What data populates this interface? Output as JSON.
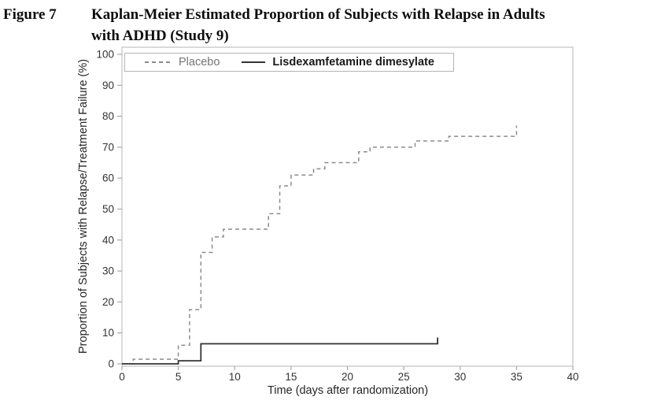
{
  "figure": {
    "label": "Figure 7",
    "title_line1": "Kaplan-Meier Estimated Proportion of Subjects with Relapse in Adults",
    "title_line2": "with ADHD (Study 9)"
  },
  "chart_data": {
    "type": "line",
    "subtype": "kaplan-meier-step",
    "title": "Kaplan-Meier Estimated Proportion of Subjects with Relapse in Adults with ADHD (Study 9)",
    "xlabel": "Time (days after randomization)",
    "ylabel": "Proportion of Subjects with Relapse/Treatment Failure (%)",
    "xlim": [
      0,
      40
    ],
    "ylim": [
      0,
      100
    ],
    "x_ticks": [
      0,
      5,
      10,
      15,
      20,
      25,
      30,
      35,
      40
    ],
    "y_ticks": [
      0,
      10,
      20,
      30,
      40,
      50,
      60,
      70,
      80,
      90,
      100
    ],
    "grid": false,
    "legend_position": "top-left-inside",
    "series": [
      {
        "id": "placebo",
        "name": "Placebo",
        "style": "dashed",
        "color": "#8c8c8c",
        "points": [
          [
            0,
            0
          ],
          [
            1,
            1.5
          ],
          [
            5,
            6
          ],
          [
            6,
            17.5
          ],
          [
            7,
            36
          ],
          [
            8,
            41
          ],
          [
            9,
            43.5
          ],
          [
            13,
            48.5
          ],
          [
            14,
            57.5
          ],
          [
            15,
            61
          ],
          [
            17,
            63
          ],
          [
            18,
            65
          ],
          [
            21,
            68.5
          ],
          [
            22,
            70
          ],
          [
            26,
            72
          ],
          [
            29,
            73.5
          ],
          [
            35,
            77
          ]
        ]
      },
      {
        "id": "lisdexamfetamine-dimesylate",
        "name": "Lisdexamfetamine dimesylate",
        "style": "solid",
        "color": "#333333",
        "points": [
          [
            0,
            0
          ],
          [
            5,
            1
          ],
          [
            7,
            6.5
          ],
          [
            28,
            8.5
          ]
        ]
      }
    ]
  },
  "colors": {
    "axis_frame": "#c2c2c2",
    "tick_mark": "#a8a8a8",
    "tick_label": "#333333",
    "axis_title": "#262626",
    "legend_border": "#b5b5b5",
    "legend_placebo_text": "#757575",
    "legend_ldx_text": "#1a1a1a"
  }
}
